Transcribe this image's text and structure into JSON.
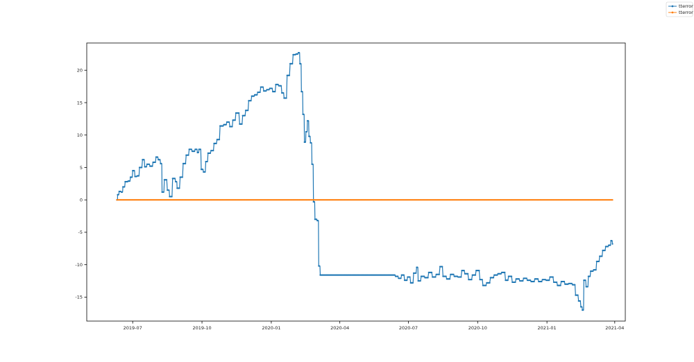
{
  "chart_data": {
    "type": "line",
    "title": "",
    "xlabel": "",
    "ylabel": "",
    "x_range": [
      "2019-05-01",
      "2021-04-15"
    ],
    "ylim": [
      -18.7,
      24.2
    ],
    "x_ticks": [
      {
        "date": "2019-07-01",
        "label": "2019-07"
      },
      {
        "date": "2019-10-01",
        "label": "2019-10"
      },
      {
        "date": "2020-01-01",
        "label": "2020-01"
      },
      {
        "date": "2020-04-01",
        "label": "2020-04"
      },
      {
        "date": "2020-07-01",
        "label": "2020-07"
      },
      {
        "date": "2020-10-01",
        "label": "2020-10"
      },
      {
        "date": "2021-01-01",
        "label": "2021-01"
      },
      {
        "date": "2021-04-01",
        "label": "2021-04"
      }
    ],
    "y_ticks": [
      -15,
      -10,
      -5,
      0,
      5,
      10,
      15,
      20
    ],
    "grid": false,
    "legend_position": "top-right",
    "series": [
      {
        "name": "tterror",
        "color": "#1f77b4",
        "marker": "dot",
        "points": [
          [
            "2019-06-10",
            0.0
          ],
          [
            "2019-06-11",
            0.8
          ],
          [
            "2019-06-13",
            1.3
          ],
          [
            "2019-06-16",
            1.2
          ],
          [
            "2019-06-18",
            2.0
          ],
          [
            "2019-06-21",
            2.8
          ],
          [
            "2019-06-25",
            2.9
          ],
          [
            "2019-06-28",
            3.5
          ],
          [
            "2019-07-01",
            4.5
          ],
          [
            "2019-07-04",
            3.6
          ],
          [
            "2019-07-07",
            3.7
          ],
          [
            "2019-07-10",
            5.0
          ],
          [
            "2019-07-14",
            6.2
          ],
          [
            "2019-07-17",
            5.1
          ],
          [
            "2019-07-20",
            5.5
          ],
          [
            "2019-07-24",
            5.2
          ],
          [
            "2019-07-28",
            5.8
          ],
          [
            "2019-08-01",
            6.6
          ],
          [
            "2019-08-04",
            6.2
          ],
          [
            "2019-08-07",
            5.6
          ],
          [
            "2019-08-09",
            1.2
          ],
          [
            "2019-08-12",
            3.1
          ],
          [
            "2019-08-16",
            1.5
          ],
          [
            "2019-08-19",
            0.5
          ],
          [
            "2019-08-23",
            3.3
          ],
          [
            "2019-08-27",
            2.8
          ],
          [
            "2019-08-29",
            1.8
          ],
          [
            "2019-09-02",
            3.5
          ],
          [
            "2019-09-06",
            5.6
          ],
          [
            "2019-09-10",
            6.9
          ],
          [
            "2019-09-14",
            7.8
          ],
          [
            "2019-09-18",
            7.5
          ],
          [
            "2019-09-22",
            7.8
          ],
          [
            "2019-09-25",
            7.3
          ],
          [
            "2019-09-27",
            7.8
          ],
          [
            "2019-09-30",
            4.7
          ],
          [
            "2019-10-03",
            4.3
          ],
          [
            "2019-10-06",
            5.9
          ],
          [
            "2019-10-09",
            7.2
          ],
          [
            "2019-10-13",
            7.6
          ],
          [
            "2019-10-17",
            8.7
          ],
          [
            "2019-10-21",
            9.3
          ],
          [
            "2019-10-25",
            11.4
          ],
          [
            "2019-10-30",
            11.6
          ],
          [
            "2019-11-03",
            12.0
          ],
          [
            "2019-11-07",
            11.3
          ],
          [
            "2019-11-11",
            12.3
          ],
          [
            "2019-11-15",
            13.4
          ],
          [
            "2019-11-20",
            11.7
          ],
          [
            "2019-11-24",
            13.0
          ],
          [
            "2019-11-28",
            13.8
          ],
          [
            "2019-12-02",
            15.3
          ],
          [
            "2019-12-06",
            16.0
          ],
          [
            "2019-12-10",
            16.2
          ],
          [
            "2019-12-14",
            16.6
          ],
          [
            "2019-12-18",
            17.4
          ],
          [
            "2019-12-22",
            16.8
          ],
          [
            "2019-12-26",
            17.0
          ],
          [
            "2019-12-30",
            17.2
          ],
          [
            "2020-01-03",
            16.7
          ],
          [
            "2020-01-07",
            17.8
          ],
          [
            "2020-01-11",
            17.6
          ],
          [
            "2020-01-15",
            16.5
          ],
          [
            "2020-01-18",
            15.7
          ],
          [
            "2020-01-22",
            19.2
          ],
          [
            "2020-01-26",
            21.0
          ],
          [
            "2020-01-30",
            22.4
          ],
          [
            "2020-02-03",
            22.5
          ],
          [
            "2020-02-06",
            22.7
          ],
          [
            "2020-02-08",
            21.0
          ],
          [
            "2020-02-10",
            16.7
          ],
          [
            "2020-02-12",
            13.2
          ],
          [
            "2020-02-14",
            8.9
          ],
          [
            "2020-02-16",
            10.5
          ],
          [
            "2020-02-18",
            12.2
          ],
          [
            "2020-02-20",
            9.8
          ],
          [
            "2020-02-22",
            8.8
          ],
          [
            "2020-02-24",
            5.5
          ],
          [
            "2020-02-26",
            -0.3
          ],
          [
            "2020-02-28",
            -3.0
          ],
          [
            "2020-03-02",
            -3.2
          ],
          [
            "2020-03-04",
            -10.2
          ],
          [
            "2020-03-06",
            -11.6
          ],
          [
            "2020-06-10",
            -11.6
          ],
          [
            "2020-06-14",
            -11.8
          ],
          [
            "2020-06-18",
            -12.1
          ],
          [
            "2020-06-22",
            -11.6
          ],
          [
            "2020-06-26",
            -12.4
          ],
          [
            "2020-06-30",
            -11.9
          ],
          [
            "2020-07-04",
            -12.8
          ],
          [
            "2020-07-08",
            -11.3
          ],
          [
            "2020-07-12",
            -10.4
          ],
          [
            "2020-07-14",
            -12.5
          ],
          [
            "2020-07-18",
            -11.8
          ],
          [
            "2020-07-23",
            -12.0
          ],
          [
            "2020-07-28",
            -11.2
          ],
          [
            "2020-08-02",
            -11.9
          ],
          [
            "2020-08-07",
            -11.5
          ],
          [
            "2020-08-12",
            -10.3
          ],
          [
            "2020-08-16",
            -11.8
          ],
          [
            "2020-08-21",
            -12.2
          ],
          [
            "2020-08-26",
            -11.5
          ],
          [
            "2020-08-31",
            -11.8
          ],
          [
            "2020-09-05",
            -11.9
          ],
          [
            "2020-09-10",
            -10.9
          ],
          [
            "2020-09-14",
            -11.4
          ],
          [
            "2020-09-19",
            -12.3
          ],
          [
            "2020-09-24",
            -11.6
          ],
          [
            "2020-09-29",
            -10.9
          ],
          [
            "2020-10-04",
            -12.3
          ],
          [
            "2020-10-08",
            -13.2
          ],
          [
            "2020-10-13",
            -12.8
          ],
          [
            "2020-10-18",
            -12.0
          ],
          [
            "2020-10-23",
            -11.6
          ],
          [
            "2020-10-28",
            -11.4
          ],
          [
            "2020-11-02",
            -11.2
          ],
          [
            "2020-11-07",
            -12.4
          ],
          [
            "2020-11-11",
            -11.8
          ],
          [
            "2020-11-16",
            -12.7
          ],
          [
            "2020-11-21",
            -12.2
          ],
          [
            "2020-11-26",
            -12.5
          ],
          [
            "2020-12-01",
            -12.1
          ],
          [
            "2020-12-06",
            -12.4
          ],
          [
            "2020-12-11",
            -12.6
          ],
          [
            "2020-12-16",
            -12.2
          ],
          [
            "2020-12-21",
            -12.6
          ],
          [
            "2020-12-26",
            -12.3
          ],
          [
            "2020-12-31",
            -12.4
          ],
          [
            "2021-01-05",
            -11.9
          ],
          [
            "2021-01-10",
            -12.7
          ],
          [
            "2021-01-15",
            -13.2
          ],
          [
            "2021-01-20",
            -12.6
          ],
          [
            "2021-01-25",
            -13.0
          ],
          [
            "2021-01-30",
            -12.9
          ],
          [
            "2021-02-04",
            -13.1
          ],
          [
            "2021-02-08",
            -14.7
          ],
          [
            "2021-02-12",
            -15.6
          ],
          [
            "2021-02-15",
            -16.5
          ],
          [
            "2021-02-17",
            -17.0
          ],
          [
            "2021-02-19",
            -12.4
          ],
          [
            "2021-02-22",
            -13.4
          ],
          [
            "2021-02-25",
            -11.8
          ],
          [
            "2021-02-28",
            -11.0
          ],
          [
            "2021-03-04",
            -10.8
          ],
          [
            "2021-03-08",
            -9.5
          ],
          [
            "2021-03-12",
            -8.7
          ],
          [
            "2021-03-16",
            -7.8
          ],
          [
            "2021-03-20",
            -7.2
          ],
          [
            "2021-03-24",
            -7.0
          ],
          [
            "2021-03-27",
            -6.3
          ],
          [
            "2021-03-29",
            -6.8
          ]
        ]
      },
      {
        "name": "tterror",
        "color": "#ff7f0e",
        "marker": "dot",
        "points": [
          [
            "2019-06-10",
            0.0
          ],
          [
            "2021-03-29",
            0.0
          ]
        ]
      }
    ]
  }
}
